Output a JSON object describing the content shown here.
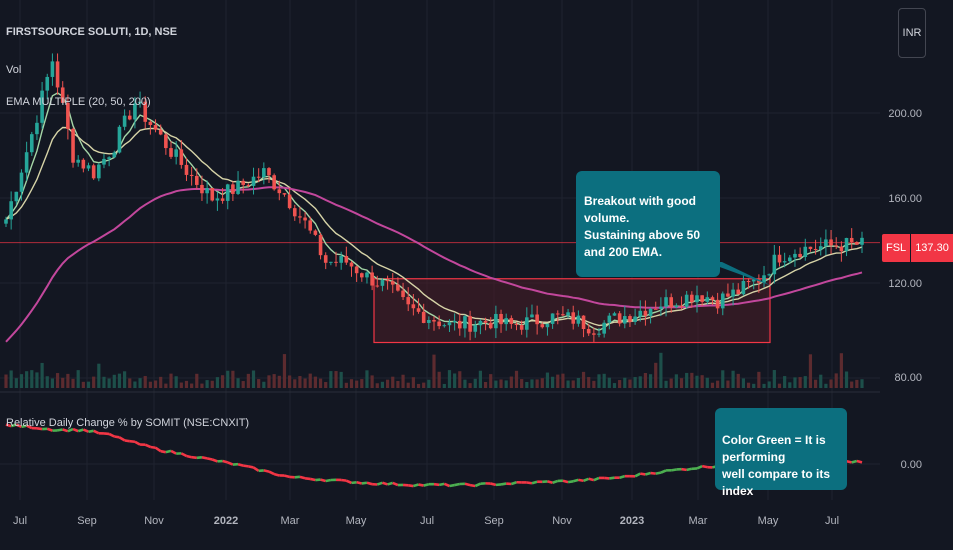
{
  "header": {
    "symbol_line": "FIRSTSOURCE SOLUTI, 1D, NSE",
    "vol_label": "Vol",
    "ema_label": "EMA MULTIPLE (20, 50, 200)",
    "indicator_label": "Relative Daily Change % by SOMIT (NSE:CNXIT)"
  },
  "currency_button": "INR",
  "price_tag": {
    "symbol": "FSL",
    "value": "137.30"
  },
  "annotations": {
    "breakout_line1": "Breakout with good volume.",
    "breakout_line2": "Sustaining above 50 and 200 EMA.",
    "green_line1": "Color Green = It is performing",
    "green_line2": "well compare to its index",
    "green_line3": "well compare to its index"
  },
  "colors": {
    "background": "#131722",
    "grid": "#1f2330",
    "up_candle": "#26a69a",
    "down_candle": "#ef5350",
    "ema20": "#a5d6a7",
    "ema50": "#d6d3a7",
    "ema200": "#c2479c",
    "box_border": "#f23645",
    "box_fill": "#4a1e26",
    "line_up": "#4caf50",
    "line_down": "#f23645",
    "callout": "#0c6f7f",
    "resistance_line": "#f23645"
  },
  "chart_data": {
    "type": "candlestick",
    "x_ticks": [
      "Jul",
      "Sep",
      "Nov",
      "2022",
      "Mar",
      "May",
      "Jul",
      "Sep",
      "Nov",
      "2023",
      "Mar",
      "May",
      "Jul"
    ],
    "y_ticks": [
      "200.00",
      "160.00",
      "120.00",
      "80.00"
    ],
    "indicator_y_ticks": [
      "0.00"
    ],
    "resistance_level": 139,
    "range_box": {
      "from": "May 2022",
      "to": "May 2023",
      "low": 92,
      "high": 122
    },
    "last_price": 137.3,
    "price_path_anchors": [
      [
        0,
        150
      ],
      [
        5,
        190
      ],
      [
        9,
        225
      ],
      [
        13,
        180
      ],
      [
        17,
        172
      ],
      [
        21,
        185
      ],
      [
        25,
        205
      ],
      [
        28,
        195
      ],
      [
        32,
        182
      ],
      [
        36,
        170
      ],
      [
        40,
        160
      ],
      [
        45,
        165
      ],
      [
        50,
        172
      ],
      [
        54,
        162
      ],
      [
        58,
        148
      ],
      [
        62,
        130
      ],
      [
        66,
        130
      ],
      [
        70,
        123
      ],
      [
        74,
        118
      ],
      [
        78,
        108
      ],
      [
        82,
        104
      ],
      [
        86,
        100
      ],
      [
        90,
        101
      ],
      [
        94,
        102
      ],
      [
        98,
        100
      ],
      [
        102,
        102
      ],
      [
        106,
        104
      ],
      [
        110,
        103
      ],
      [
        114,
        99
      ],
      [
        118,
        103
      ],
      [
        122,
        106
      ],
      [
        126,
        110
      ],
      [
        130,
        112
      ],
      [
        134,
        115
      ],
      [
        138,
        112
      ],
      [
        142,
        116
      ],
      [
        146,
        122
      ],
      [
        150,
        133
      ],
      [
        154,
        136
      ],
      [
        158,
        137
      ],
      [
        162,
        138
      ],
      [
        166,
        138
      ]
    ],
    "ema_series": [
      {
        "period": 20,
        "color": "#a5d6a7"
      },
      {
        "period": 50,
        "color": "#d6d3a7"
      },
      {
        "period": 200,
        "color": "#c2479c"
      }
    ],
    "relative_change_anchors": [
      [
        0,
        40
      ],
      [
        5,
        38
      ],
      [
        10,
        35
      ],
      [
        15,
        35
      ],
      [
        20,
        30
      ],
      [
        25,
        22
      ],
      [
        30,
        15
      ],
      [
        35,
        10
      ],
      [
        40,
        5
      ],
      [
        45,
        0
      ],
      [
        50,
        -6
      ],
      [
        55,
        -12
      ],
      [
        60,
        -14
      ],
      [
        65,
        -16
      ],
      [
        70,
        -18
      ],
      [
        75,
        -19
      ],
      [
        80,
        -20
      ],
      [
        85,
        -20
      ],
      [
        90,
        -20
      ],
      [
        95,
        -19
      ],
      [
        100,
        -18
      ],
      [
        105,
        -17
      ],
      [
        110,
        -16
      ],
      [
        115,
        -14
      ],
      [
        120,
        -12
      ],
      [
        125,
        -8
      ],
      [
        130,
        -5
      ],
      [
        135,
        -2
      ],
      [
        140,
        0
      ],
      [
        145,
        1
      ],
      [
        150,
        1
      ],
      [
        155,
        0
      ],
      [
        160,
        2
      ],
      [
        166,
        3
      ]
    ]
  }
}
